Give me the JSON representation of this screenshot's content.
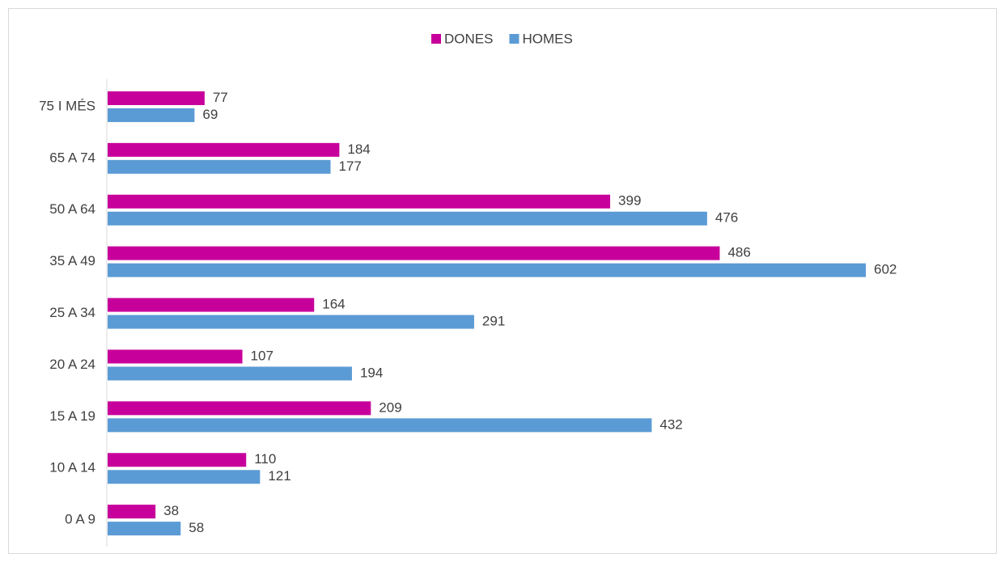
{
  "chart_data": {
    "type": "bar",
    "orientation": "horizontal",
    "categories": [
      "75 I MÉS",
      "65 A 74",
      "50 A 64",
      "35 A 49",
      "25 A 34",
      "20 A 24",
      "15 A 19",
      "10 A 14",
      "0 A 9"
    ],
    "series": [
      {
        "name": "DONES",
        "color": "#c8009b",
        "values": [
          77,
          184,
          399,
          486,
          164,
          107,
          209,
          110,
          38
        ]
      },
      {
        "name": "HOMES",
        "color": "#5b9bd5",
        "values": [
          69,
          177,
          476,
          602,
          291,
          194,
          432,
          121,
          58
        ]
      }
    ],
    "legend": "top"
  }
}
